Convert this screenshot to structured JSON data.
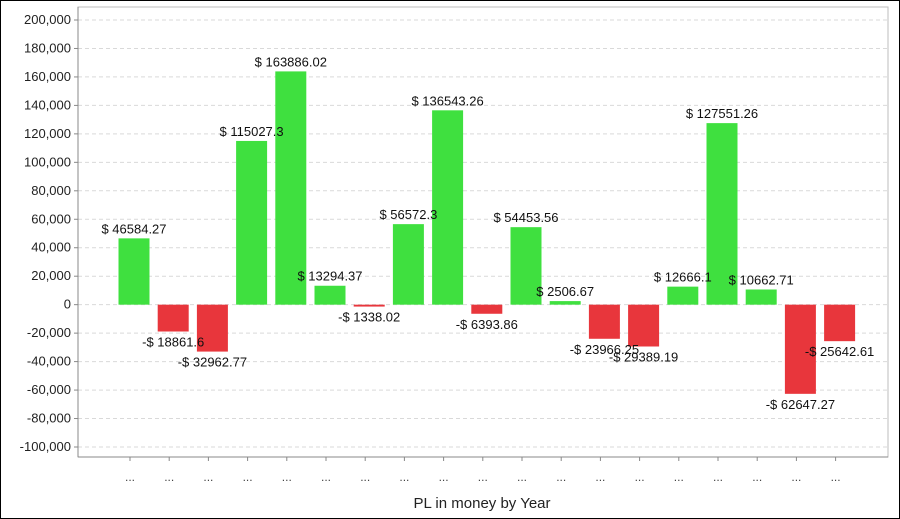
{
  "chart_data": {
    "type": "bar",
    "title": "",
    "xlabel": "PL in money by Year",
    "ylabel": "",
    "ylim": [
      -100000,
      200000
    ],
    "yticks": [
      200000,
      180000,
      160000,
      140000,
      120000,
      100000,
      80000,
      60000,
      40000,
      20000,
      0,
      -20000,
      -40000,
      -60000,
      -80000,
      -100000
    ],
    "ytick_labels": [
      "200,000",
      "180,000",
      "160,000",
      "140,000",
      "120,000",
      "100,000",
      "80,000",
      "60,000",
      "40,000",
      "20,000",
      "0",
      "-20,000",
      "-40,000",
      "-60,000",
      "-80,000",
      "-100,000"
    ],
    "grid": true,
    "legend": "none",
    "categories": [
      "...",
      "...",
      "...",
      "...",
      "...",
      "...",
      "...",
      "...",
      "...",
      "...",
      "...",
      "...",
      "...",
      "...",
      "...",
      "...",
      "...",
      "...",
      "..."
    ],
    "values": [
      46584.27,
      -18861.6,
      -32962.77,
      115027.3,
      163886.02,
      13294.37,
      -1338.02,
      56572.3,
      136543.26,
      -6393.86,
      54453.56,
      2506.67,
      -23966.25,
      -29389.19,
      12666.1,
      127551.26,
      10662.71,
      -62647.27,
      -25642.61
    ],
    "data_labels": [
      "$ 46584.27",
      "-$ 18861.6",
      "-$ 32962.77",
      "$ 115027.3",
      "$ 163886.02",
      "$ 13294.37",
      "-$ 1338.02",
      "$ 56572.3",
      "$ 136543.26",
      "-$ 6393.86",
      "$ 54453.56",
      "$ 2506.67",
      "-$ 23966.25",
      "-$ 29389.19",
      "$ 12666.1",
      "$ 127551.26",
      "$ 10662.71",
      "-$ 62647.27",
      "-$ 25642.61"
    ],
    "colors": {
      "positive": "#3fe03f",
      "negative": "#e8363c",
      "grid": "#d9d9d9",
      "axis": "#888888"
    }
  }
}
